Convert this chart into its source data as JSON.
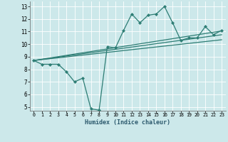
{
  "xlabel": "Humidex (Indice chaleur)",
  "xlim": [
    -0.5,
    23.5
  ],
  "ylim": [
    4.7,
    13.4
  ],
  "xticks": [
    0,
    1,
    2,
    3,
    4,
    5,
    6,
    7,
    8,
    9,
    10,
    11,
    12,
    13,
    14,
    15,
    16,
    17,
    18,
    19,
    20,
    21,
    22,
    23
  ],
  "yticks": [
    5,
    6,
    7,
    8,
    9,
    10,
    11,
    12,
    13
  ],
  "bg_color": "#cce8ea",
  "line_color": "#2d7d74",
  "series1_x": [
    0,
    1,
    2,
    3,
    4,
    5,
    6,
    7,
    8,
    9,
    10,
    11,
    12,
    13,
    14,
    15,
    16,
    17,
    18,
    19,
    20,
    21,
    22,
    23
  ],
  "series1_y": [
    8.7,
    8.4,
    8.4,
    8.4,
    7.8,
    7.0,
    7.3,
    4.85,
    4.75,
    9.8,
    9.7,
    11.1,
    12.4,
    11.7,
    12.3,
    12.4,
    13.0,
    11.7,
    10.3,
    10.5,
    10.5,
    11.4,
    10.75,
    11.1
  ],
  "series2_x": [
    0,
    23
  ],
  "series2_y": [
    8.7,
    10.75
  ],
  "series3_x": [
    0,
    23
  ],
  "series3_y": [
    8.7,
    10.35
  ],
  "series4_x": [
    0,
    23
  ],
  "series4_y": [
    8.7,
    11.05
  ]
}
